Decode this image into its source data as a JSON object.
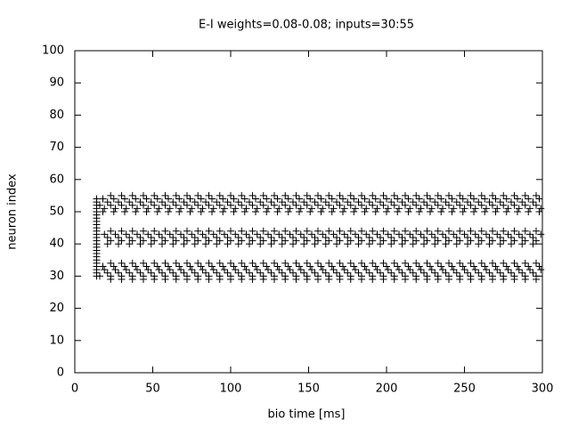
{
  "chart_data": {
    "type": "raster",
    "title": "E-I weights=0.08-0.08; inputs=30:55",
    "xlabel": "bio time [ms]",
    "ylabel": "neuron index",
    "xlim": [
      0,
      300
    ],
    "ylim": [
      0,
      100
    ],
    "xticks": [
      0,
      50,
      100,
      150,
      200,
      250,
      300
    ],
    "yticks": [
      0,
      10,
      20,
      30,
      40,
      50,
      60,
      70,
      80,
      90,
      100
    ],
    "color": "#000000",
    "rows": [
      {
        "neuron": 29,
        "times": [
          23,
          30,
          37,
          44,
          51,
          58,
          65,
          72,
          79,
          86,
          93,
          100,
          107,
          114,
          121,
          128,
          135,
          142,
          149,
          156,
          163,
          170,
          177,
          184,
          191,
          198,
          205,
          212,
          219,
          226,
          233,
          240,
          247,
          254,
          261,
          268,
          275,
          282,
          289,
          296
        ]
      },
      {
        "neuron": 30,
        "times": [
          14,
          16,
          23,
          30,
          37,
          44,
          51,
          58,
          65,
          72,
          79,
          86,
          93,
          100,
          107,
          114,
          121,
          128,
          135,
          142,
          149,
          156,
          163,
          170,
          177,
          184,
          191,
          198,
          205,
          212,
          219,
          226,
          233,
          240,
          247,
          254,
          261,
          268,
          275,
          282,
          289,
          296
        ]
      },
      {
        "neuron": 31,
        "times": [
          14,
          21,
          28,
          35,
          42,
          49,
          56,
          63,
          70,
          77,
          84,
          91,
          98,
          105,
          112,
          119,
          126,
          133,
          140,
          147,
          154,
          161,
          168,
          175,
          182,
          189,
          196,
          203,
          210,
          217,
          224,
          231,
          238,
          245,
          252,
          259,
          266,
          273,
          280,
          287,
          294
        ]
      },
      {
        "neuron": 32,
        "times": [
          14,
          19,
          26,
          33,
          40,
          47,
          54,
          61,
          68,
          75,
          82,
          89,
          96,
          103,
          110,
          117,
          124,
          131,
          138,
          145,
          152,
          159,
          166,
          173,
          180,
          187,
          194,
          201,
          208,
          215,
          222,
          229,
          236,
          243,
          250,
          257,
          264,
          271,
          278,
          285,
          292,
          299
        ]
      },
      {
        "neuron": 33,
        "times": [
          14,
          18,
          25,
          32,
          39,
          46,
          53,
          60,
          67,
          74,
          81,
          88,
          95,
          102,
          109,
          116,
          123,
          130,
          137,
          144,
          151,
          158,
          165,
          172,
          179,
          186,
          193,
          200,
          207,
          214,
          221,
          228,
          235,
          242,
          249,
          256,
          263,
          270,
          277,
          284,
          291,
          298
        ]
      },
      {
        "neuron": 34,
        "times": [
          14,
          23,
          30,
          37,
          44,
          51,
          58,
          65,
          72,
          79,
          86,
          93,
          100,
          107,
          114,
          121,
          128,
          135,
          142,
          149,
          156,
          163,
          170,
          177,
          184,
          191,
          198,
          205,
          212,
          219,
          226,
          233,
          240,
          247,
          254,
          261,
          268,
          275,
          282,
          289,
          296
        ]
      },
      {
        "neuron": 35,
        "times": [
          14
        ]
      },
      {
        "neuron": 36,
        "times": [
          14
        ]
      },
      {
        "neuron": 37,
        "times": [
          14
        ]
      },
      {
        "neuron": 38,
        "times": [
          14
        ]
      },
      {
        "neuron": 39,
        "times": [
          14
        ]
      },
      {
        "neuron": 40,
        "times": [
          14,
          21,
          28,
          35,
          42,
          49,
          56,
          63,
          70,
          77,
          84,
          91,
          98,
          105,
          112,
          119,
          126,
          133,
          140,
          147,
          154,
          161,
          168,
          175,
          182,
          189,
          196,
          203,
          210,
          217,
          224,
          231,
          238,
          245,
          252,
          259,
          266,
          273,
          280,
          287,
          294
        ]
      },
      {
        "neuron": 41,
        "times": [
          14,
          23,
          30,
          37,
          44,
          51,
          58,
          65,
          72,
          79,
          86,
          93,
          100,
          107,
          114,
          121,
          128,
          135,
          142,
          149,
          156,
          163,
          170,
          177,
          184,
          191,
          198,
          205,
          212,
          219,
          226,
          233,
          240,
          247,
          254,
          261,
          268,
          275,
          282,
          289,
          296
        ]
      },
      {
        "neuron": 42,
        "times": [
          14,
          21,
          28,
          35,
          42,
          49,
          56,
          63,
          70,
          77,
          84,
          91,
          98,
          105,
          112,
          119,
          126,
          133,
          140,
          147,
          154,
          161,
          168,
          175,
          182,
          189,
          196,
          203,
          210,
          217,
          224,
          231,
          238,
          245,
          252,
          259,
          266,
          273,
          280,
          287,
          294
        ]
      },
      {
        "neuron": 43,
        "times": [
          14,
          19,
          26,
          33,
          40,
          47,
          54,
          61,
          68,
          75,
          82,
          89,
          96,
          103,
          110,
          117,
          124,
          131,
          138,
          145,
          152,
          159,
          166,
          173,
          180,
          187,
          194,
          201,
          208,
          215,
          222,
          229,
          236,
          243,
          250,
          257,
          264,
          271,
          278,
          285,
          292,
          299
        ]
      },
      {
        "neuron": 44,
        "times": [
          14,
          23,
          30,
          37,
          44,
          51,
          58,
          65,
          72,
          79,
          86,
          93,
          100,
          107,
          114,
          121,
          128,
          135,
          142,
          149,
          156,
          163,
          170,
          177,
          184,
          191,
          198,
          205,
          212,
          219,
          226,
          233,
          240,
          247,
          254,
          261,
          268,
          275,
          282,
          289,
          296
        ]
      },
      {
        "neuron": 45,
        "times": [
          14
        ]
      },
      {
        "neuron": 46,
        "times": [
          14
        ]
      },
      {
        "neuron": 47,
        "times": [
          14
        ]
      },
      {
        "neuron": 48,
        "times": [
          14
        ]
      },
      {
        "neuron": 49,
        "times": [
          14
        ]
      },
      {
        "neuron": 50,
        "times": [
          14,
          18,
          25,
          32,
          39,
          46,
          53,
          60,
          67,
          74,
          81,
          88,
          95,
          102,
          109,
          116,
          123,
          130,
          137,
          144,
          151,
          158,
          165,
          172,
          179,
          186,
          193,
          200,
          207,
          214,
          221,
          228,
          235,
          242,
          249,
          256,
          263,
          270,
          277,
          284,
          291,
          298
        ]
      },
      {
        "neuron": 51,
        "times": [
          14,
          19,
          26,
          33,
          40,
          47,
          54,
          61,
          68,
          75,
          82,
          89,
          96,
          103,
          110,
          117,
          124,
          131,
          138,
          145,
          152,
          159,
          166,
          173,
          180,
          187,
          194,
          201,
          208,
          215,
          222,
          229,
          236,
          243,
          250,
          257,
          264,
          271,
          278,
          285,
          292,
          299
        ]
      },
      {
        "neuron": 52,
        "times": [
          14,
          16,
          23,
          30,
          37,
          44,
          51,
          58,
          65,
          72,
          79,
          86,
          93,
          100,
          107,
          114,
          121,
          128,
          135,
          142,
          149,
          156,
          163,
          170,
          177,
          184,
          191,
          198,
          205,
          212,
          219,
          226,
          233,
          240,
          247,
          254,
          261,
          268,
          275,
          282,
          289,
          296
        ]
      },
      {
        "neuron": 53,
        "times": [
          14,
          21,
          28,
          35,
          42,
          49,
          56,
          63,
          70,
          77,
          84,
          91,
          98,
          105,
          112,
          119,
          126,
          133,
          140,
          147,
          154,
          161,
          168,
          175,
          182,
          189,
          196,
          203,
          210,
          217,
          224,
          231,
          238,
          245,
          252,
          259,
          266,
          273,
          280,
          287,
          294
        ]
      },
      {
        "neuron": 54,
        "times": [
          14,
          18,
          25,
          32,
          39,
          46,
          53,
          60,
          67,
          74,
          81,
          88,
          95,
          102,
          109,
          116,
          123,
          130,
          137,
          144,
          151,
          158,
          165,
          172,
          179,
          186,
          193,
          200,
          207,
          214,
          221,
          228,
          235,
          242,
          249,
          256,
          263,
          270,
          277,
          284,
          291,
          298
        ]
      },
      {
        "neuron": 55,
        "times": [
          23,
          30,
          37,
          44,
          51,
          58,
          65,
          72,
          79,
          86,
          93,
          100,
          107,
          114,
          121,
          128,
          135,
          142,
          149,
          156,
          163,
          170,
          177,
          184,
          191,
          198,
          205,
          212,
          219,
          226,
          233,
          240,
          247,
          254,
          261,
          268,
          275,
          282,
          289,
          296
        ]
      }
    ]
  }
}
